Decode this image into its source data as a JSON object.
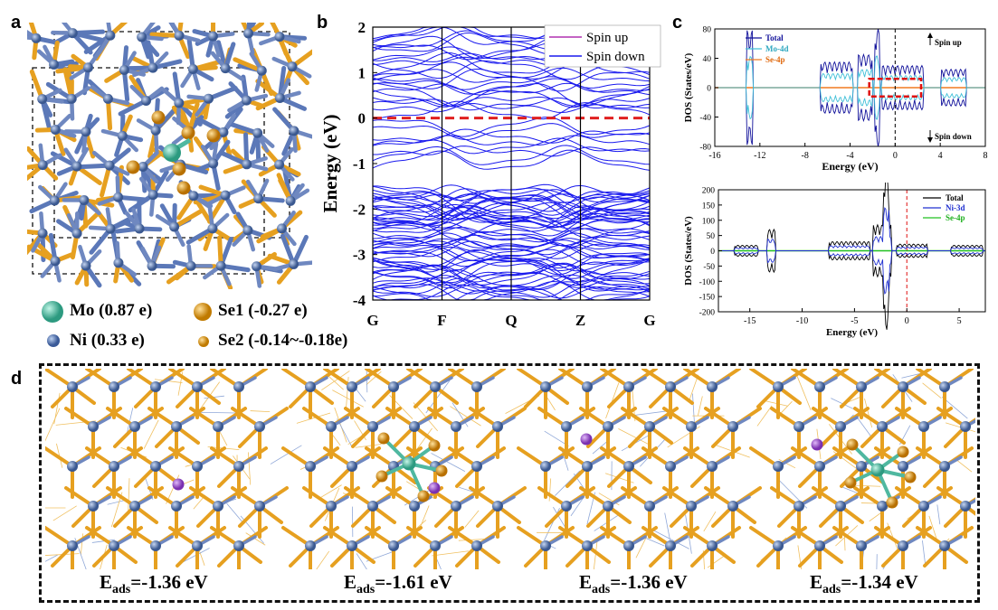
{
  "panel_labels": {
    "a": "a",
    "b": "b",
    "c": "c",
    "d": "d"
  },
  "colors": {
    "mo": "#4fb8a0",
    "ni": "#5b78b8",
    "se": "#e6a020",
    "adatom": "#9a55c8",
    "band": "#1a1aee",
    "fermi": "#e02020"
  },
  "legend_a": {
    "mo": "Mo (0.87 e)",
    "se1": "Se1 (-0.27 e)",
    "ni": "Ni (0.33 e)",
    "se2": "Se2 (-0.14~-0.18e)"
  },
  "chart_data": [
    {
      "type": "line",
      "panel": "b",
      "ylabel": "Energy (eV)",
      "xlabel": "",
      "categories": [
        "G",
        "F",
        "Q",
        "Z",
        "G"
      ],
      "ylim": [
        -4,
        2
      ],
      "yticks": [
        -4,
        -3,
        -2,
        -1,
        0,
        1,
        2
      ],
      "series": [
        {
          "name": "Spin up"
        },
        {
          "name": "Spin down"
        }
      ],
      "fermi_level": 0,
      "legend": "top-right"
    },
    {
      "type": "line",
      "panel": "c-top",
      "xlabel": "Energy (eV)",
      "ylabel": "DOS (States/eV)",
      "xlim": [
        -16,
        8
      ],
      "ylim": [
        -80,
        80
      ],
      "xticks": [
        -16,
        -12,
        -8,
        -4,
        0,
        4,
        8
      ],
      "yticks": [
        -80,
        -40,
        0,
        40,
        80
      ],
      "series": [
        {
          "name": "Total"
        },
        {
          "name": "Mo-4d"
        },
        {
          "name": "Se-4p"
        }
      ],
      "annotations": [
        "Spin up",
        "Spin down"
      ],
      "legend": "top-left"
    },
    {
      "type": "line",
      "panel": "c-bottom",
      "xlabel": "Energy (eV)",
      "ylabel": "DOS (States/eV)",
      "xlim": [
        -18,
        7.5
      ],
      "ylim": [
        -200,
        200
      ],
      "xticks": [
        -15,
        -10,
        -5,
        0,
        5
      ],
      "yticks": [
        -200,
        -150,
        -100,
        -50,
        0,
        50,
        100,
        150,
        200
      ],
      "series": [
        {
          "name": "Total"
        },
        {
          "name": "Ni-3d"
        },
        {
          "name": "Se-4p"
        }
      ],
      "legend": "top-right"
    }
  ],
  "panel_d": {
    "energies": [
      {
        "label": "E",
        "sub": "ads",
        "value": "=-1.36 eV"
      },
      {
        "label": "E",
        "sub": "ads",
        "value": "=-1.61 eV"
      },
      {
        "label": "E",
        "sub": "ads",
        "value": "=-1.36 eV"
      },
      {
        "label": "E",
        "sub": "ads",
        "value": "=-1.34 eV"
      }
    ]
  }
}
